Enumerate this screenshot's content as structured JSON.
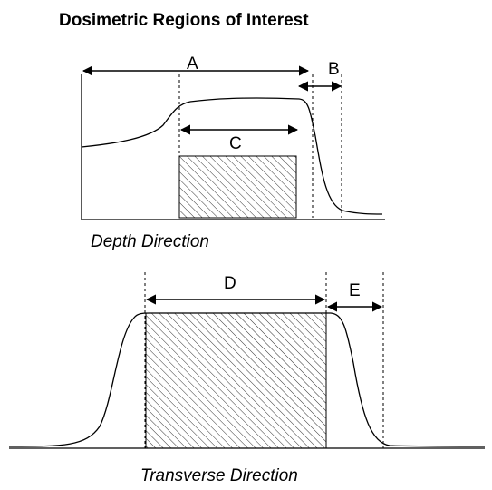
{
  "title": "Dosimetric Regions of Interest",
  "depth": {
    "labels": {
      "a": "A",
      "b": "B",
      "c": "C"
    },
    "caption": "Depth Direction"
  },
  "transverse": {
    "labels": {
      "d": "D",
      "e": "E"
    },
    "caption": "Transverse Direction"
  }
}
